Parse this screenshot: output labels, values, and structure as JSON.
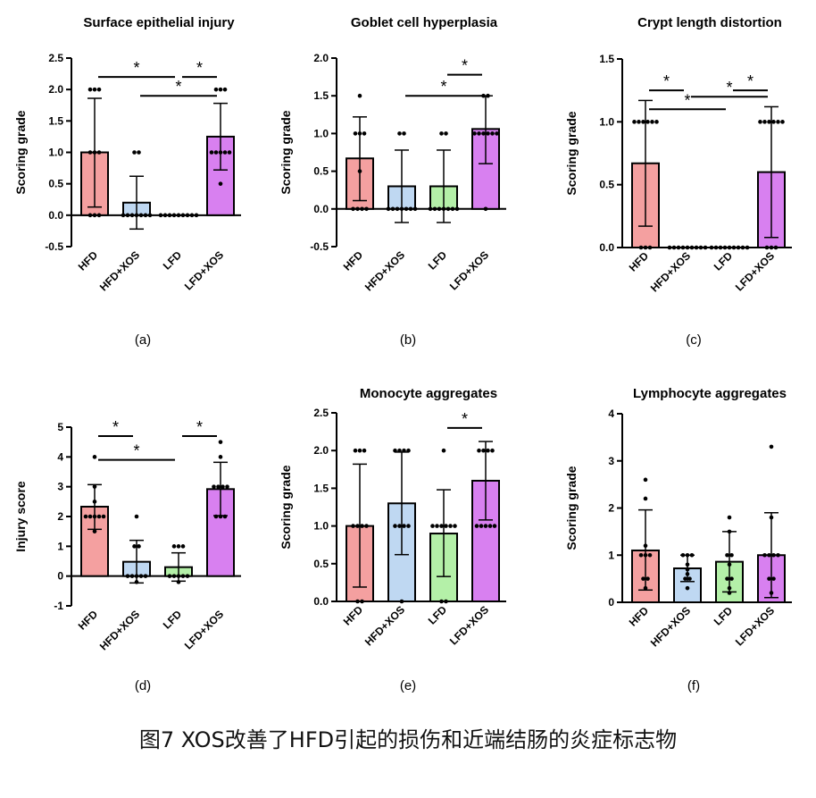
{
  "colors": {
    "HFD": "#f4a0a0",
    "HFD+XOS": "#bfd8f2",
    "LFD": "#b4f0a8",
    "LFD+XOS": "#d880f0",
    "axis": "#000000"
  },
  "caption": "图7 XOS改善了HFD引起的损伤和近端结肠的炎症标志物",
  "chart_data": [
    {
      "type": "bar",
      "letter": "(a)",
      "title": "Surface epithelial injury",
      "ylabel": "Scoring grade",
      "categories": [
        "HFD",
        "HFD+XOS",
        "LFD",
        "LFD+XOS"
      ],
      "ylim": [
        -0.5,
        2.5
      ],
      "yticks": [
        -0.5,
        0.0,
        0.5,
        1.0,
        1.5,
        2.0,
        2.5
      ],
      "tick_decimals": 1,
      "series": [
        {
          "values": [
            1.0,
            0.2,
            0.0,
            1.25
          ]
        }
      ],
      "error_low": [
        0.13,
        -0.22,
        0.0,
        0.72
      ],
      "error_high": [
        1.86,
        0.62,
        0.0,
        1.78
      ],
      "points": [
        [
          2,
          2,
          2,
          1,
          1,
          1,
          0,
          0,
          0
        ],
        [
          1,
          1,
          0,
          0,
          0,
          0,
          0,
          0,
          0
        ],
        [
          0,
          0,
          0,
          0,
          0,
          0,
          0,
          0,
          0
        ],
        [
          2,
          2,
          2,
          1,
          1,
          1,
          1,
          1,
          0.5
        ]
      ],
      "significance": [
        {
          "from": 0,
          "to": 2,
          "level": 2.2,
          "label": "*"
        },
        {
          "from": 1,
          "to": 3,
          "level": 1.9,
          "label": "*"
        },
        {
          "from": 2,
          "to": 3,
          "level": 2.2,
          "label": "*"
        }
      ]
    },
    {
      "type": "bar",
      "letter": "(b)",
      "title": "Goblet cell hyperplasia",
      "ylabel": "Scoring grade",
      "categories": [
        "HFD",
        "HFD+XOS",
        "LFD",
        "LFD+XOS"
      ],
      "ylim": [
        -0.5,
        2.0
      ],
      "yticks": [
        -0.5,
        0.0,
        0.5,
        1.0,
        1.5,
        2.0
      ],
      "tick_decimals": 1,
      "series": [
        {
          "values": [
            0.67,
            0.3,
            0.3,
            1.06
          ]
        }
      ],
      "error_low": [
        0.11,
        -0.18,
        -0.18,
        0.6
      ],
      "error_high": [
        1.22,
        0.78,
        0.78,
        1.5
      ],
      "points": [
        [
          1.5,
          1,
          1,
          1,
          0.5,
          0,
          0,
          0,
          0
        ],
        [
          1,
          1,
          0,
          0,
          0,
          0,
          0,
          0,
          0
        ],
        [
          1,
          1,
          0,
          0,
          0,
          0,
          0,
          0,
          0
        ],
        [
          1.5,
          1.5,
          1,
          1,
          1,
          1,
          1,
          1,
          0
        ]
      ],
      "significance": [
        {
          "from": 1,
          "to": 3,
          "level": 1.5,
          "label": "*"
        },
        {
          "from": 2,
          "to": 3,
          "level": 1.78,
          "label": "*"
        }
      ]
    },
    {
      "type": "bar",
      "letter": "(c)",
      "title": "Crypt length distortion",
      "ylabel": "Scoring grade",
      "categories": [
        "HFD",
        "HFD+XOS",
        "LFD",
        "LFD+XOS"
      ],
      "ylim": [
        0.0,
        1.5
      ],
      "yticks": [
        0.0,
        0.5,
        1.0,
        1.5
      ],
      "tick_decimals": 1,
      "series": [
        {
          "values": [
            0.67,
            0.0,
            0.0,
            0.6
          ]
        }
      ],
      "error_low": [
        0.17,
        0.0,
        0.0,
        0.08
      ],
      "error_high": [
        1.17,
        0.0,
        0.0,
        1.12
      ],
      "points": [
        [
          1,
          1,
          1,
          1,
          1,
          1,
          0,
          0,
          0
        ],
        [
          0,
          0,
          0,
          0,
          0,
          0,
          0,
          0,
          0
        ],
        [
          0,
          0,
          0,
          0,
          0,
          0,
          0,
          0,
          0
        ],
        [
          1,
          1,
          1,
          1,
          1,
          1,
          0,
          0,
          0
        ]
      ],
      "significance": [
        {
          "from": 0,
          "to": 1,
          "level": 1.25,
          "label": "*"
        },
        {
          "from": 0,
          "to": 2,
          "level": 1.1,
          "label": "*"
        },
        {
          "from": 1,
          "to": 3,
          "level": 1.2,
          "label": "*"
        },
        {
          "from": 2,
          "to": 3,
          "level": 1.25,
          "label": "*"
        }
      ]
    },
    {
      "type": "bar",
      "letter": "(d)",
      "title": "",
      "ylabel": "Injury score",
      "categories": [
        "HFD",
        "HFD+XOS",
        "LFD",
        "LFD+XOS"
      ],
      "ylim": [
        -1,
        5
      ],
      "yticks": [
        -1,
        0,
        1,
        2,
        3,
        4,
        5
      ],
      "tick_decimals": 0,
      "series": [
        {
          "values": [
            2.33,
            0.48,
            0.3,
            2.92
          ]
        }
      ],
      "error_low": [
        1.57,
        -0.23,
        -0.17,
        2.03
      ],
      "error_high": [
        3.07,
        1.2,
        0.78,
        3.82
      ],
      "points": [
        [
          4,
          3,
          2.5,
          2,
          2,
          2,
          2,
          2,
          1.5
        ],
        [
          2,
          1,
          1,
          0,
          0,
          0,
          0,
          0,
          -0.2
        ],
        [
          1,
          1,
          1,
          0,
          0,
          0,
          0,
          0,
          -0.2
        ],
        [
          4.5,
          4,
          3,
          3,
          3,
          3,
          2,
          2,
          2
        ]
      ],
      "significance": [
        {
          "from": 0,
          "to": 1,
          "level": 4.7,
          "label": "*"
        },
        {
          "from": 0,
          "to": 2,
          "level": 3.9,
          "label": "*"
        },
        {
          "from": 2,
          "to": 3,
          "level": 4.7,
          "label": "*"
        }
      ]
    },
    {
      "type": "bar",
      "letter": "(e)",
      "title": "Monocyte aggregates",
      "ylabel": "Scoring grade",
      "categories": [
        "HFD",
        "HFD+XOS",
        "LFD",
        "LFD+XOS"
      ],
      "ylim": [
        0.0,
        2.5
      ],
      "yticks": [
        0.0,
        0.5,
        1.0,
        1.5,
        2.0,
        2.5
      ],
      "tick_decimals": 1,
      "series": [
        {
          "values": [
            1.0,
            1.3,
            0.9,
            1.6
          ]
        }
      ],
      "error_low": [
        0.19,
        0.62,
        0.33,
        1.08
      ],
      "error_high": [
        1.82,
        1.98,
        1.48,
        2.12
      ],
      "points": [
        [
          2,
          2,
          2,
          1,
          1,
          1,
          1,
          0,
          0
        ],
        [
          2,
          2,
          2,
          2,
          1,
          1,
          1,
          1,
          0
        ],
        [
          2,
          1,
          1,
          1,
          1,
          1,
          1,
          0,
          0
        ],
        [
          2,
          2,
          2,
          2,
          1,
          1,
          1,
          1,
          1
        ]
      ],
      "significance": [
        {
          "from": 2,
          "to": 3,
          "level": 2.3,
          "label": "*"
        }
      ]
    },
    {
      "type": "bar",
      "letter": "(f)",
      "title": "Lymphocyte aggregates",
      "ylabel": "Scoring grade",
      "categories": [
        "HFD",
        "HFD+XOS",
        "LFD",
        "LFD+XOS"
      ],
      "ylim": [
        0,
        4
      ],
      "yticks": [
        0,
        1,
        2,
        3,
        4
      ],
      "tick_decimals": 0,
      "series": [
        {
          "values": [
            1.1,
            0.72,
            0.86,
            1.0
          ]
        }
      ],
      "error_low": [
        0.26,
        0.44,
        0.22,
        0.1
      ],
      "error_high": [
        1.96,
        1.0,
        1.5,
        1.9
      ],
      "points": [
        [
          2.6,
          2.2,
          1.2,
          1,
          1,
          1,
          0.5,
          0.5,
          0.3
        ],
        [
          1,
          1,
          1,
          0.8,
          0.7,
          0.6,
          0.5,
          0.5,
          0.3
        ],
        [
          1.8,
          1.5,
          1,
          1,
          0.8,
          0.5,
          0.5,
          0.3,
          0.2
        ],
        [
          3.3,
          1.8,
          1,
          1,
          1,
          1,
          0.5,
          0.5,
          0.2
        ]
      ],
      "significance": []
    }
  ]
}
